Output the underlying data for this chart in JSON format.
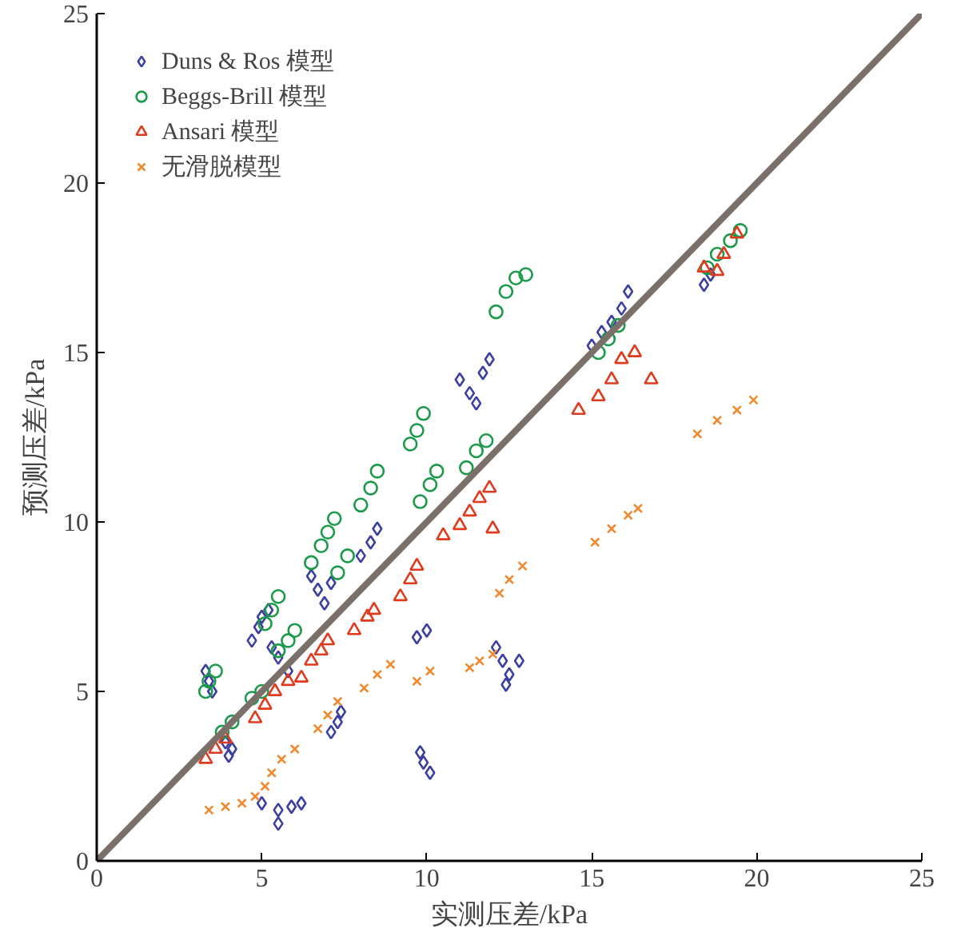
{
  "chart_data": {
    "type": "scatter",
    "xlabel": "实测压差/kPa",
    "ylabel": "预测压差/kPa",
    "xlim": [
      0,
      25
    ],
    "ylim": [
      0,
      25
    ],
    "xticks": [
      0,
      5,
      10,
      15,
      20,
      25
    ],
    "yticks": [
      0,
      5,
      10,
      15,
      20,
      25
    ],
    "grid": false,
    "legend": "top left",
    "series": [
      {
        "name": "Duns & Ros 模型",
        "color": "#3b3fa0",
        "marker": "diamond",
        "x": [
          3.3,
          3.4,
          3.5,
          3.9,
          4.1,
          4.0,
          4.7,
          4.9,
          5.0,
          5.2,
          5.3,
          5.5,
          5.8,
          6.5,
          6.7,
          6.9,
          7.1,
          8.0,
          8.3,
          8.5,
          7.1,
          7.3,
          7.4,
          5.0,
          5.5,
          5.9,
          6.2,
          5.5,
          9.8,
          9.9,
          10.1,
          9.7,
          10.0,
          11.0,
          11.3,
          11.5,
          11.7,
          11.9,
          15.0,
          15.3,
          15.6,
          15.9,
          16.1,
          12.1,
          12.3,
          12.5,
          12.8,
          12.4,
          18.4,
          18.6
        ],
        "values": [
          5.6,
          5.3,
          5.0,
          3.5,
          3.3,
          3.1,
          6.5,
          6.9,
          7.2,
          7.4,
          6.3,
          6.0,
          5.6,
          8.4,
          8.0,
          7.6,
          8.2,
          9.0,
          9.4,
          9.8,
          3.8,
          4.1,
          4.4,
          1.7,
          1.5,
          1.6,
          1.7,
          1.1,
          3.2,
          2.9,
          2.6,
          6.6,
          6.8,
          14.2,
          13.8,
          13.5,
          14.4,
          14.8,
          15.2,
          15.6,
          15.9,
          16.3,
          16.8,
          6.3,
          5.9,
          5.5,
          5.9,
          5.2,
          17.0,
          17.3
        ]
      },
      {
        "name": "Beggs-Brill 模型",
        "color": "#1a9a4a",
        "marker": "circle",
        "x": [
          3.3,
          3.4,
          3.6,
          3.8,
          4.1,
          4.7,
          5.0,
          5.1,
          5.3,
          5.5,
          5.5,
          5.8,
          6.0,
          6.5,
          6.8,
          7.0,
          7.2,
          7.3,
          7.6,
          8.0,
          8.3,
          8.5,
          9.5,
          9.7,
          9.9,
          9.8,
          10.1,
          10.3,
          11.2,
          11.5,
          11.8,
          12.1,
          12.4,
          12.7,
          13.0,
          15.2,
          15.5,
          15.8,
          18.5,
          18.8,
          19.2,
          19.5
        ],
        "values": [
          5.0,
          5.3,
          5.6,
          3.8,
          4.1,
          4.8,
          5.0,
          7.0,
          7.4,
          7.8,
          6.2,
          6.5,
          6.8,
          8.8,
          9.3,
          9.7,
          10.1,
          8.5,
          9.0,
          10.5,
          11.0,
          11.5,
          12.3,
          12.7,
          13.2,
          10.6,
          11.1,
          11.5,
          11.6,
          12.1,
          12.4,
          16.2,
          16.8,
          17.2,
          17.3,
          15.0,
          15.4,
          15.8,
          17.5,
          17.9,
          18.3,
          18.6
        ]
      },
      {
        "name": "Ansari 模型",
        "color": "#e03a1e",
        "marker": "triangle",
        "x": [
          3.3,
          3.6,
          3.9,
          4.8,
          5.1,
          5.4,
          5.8,
          6.2,
          6.5,
          6.8,
          7.0,
          7.8,
          8.2,
          8.4,
          9.2,
          9.5,
          9.7,
          10.5,
          11.0,
          11.3,
          11.6,
          11.9,
          12.0,
          14.6,
          15.2,
          15.6,
          15.9,
          16.3,
          16.8,
          18.4,
          18.8,
          19.0,
          19.4
        ],
        "values": [
          3.0,
          3.3,
          3.6,
          4.2,
          4.6,
          5.0,
          5.3,
          5.4,
          5.9,
          6.2,
          6.5,
          6.8,
          7.2,
          7.4,
          7.8,
          8.3,
          8.7,
          9.6,
          9.9,
          10.3,
          10.7,
          11.0,
          9.8,
          13.3,
          13.7,
          14.2,
          14.8,
          15.0,
          14.2,
          17.5,
          17.4,
          17.9,
          18.5
        ]
      },
      {
        "name": "无滑脱模型",
        "color": "#f08a30",
        "marker": "x",
        "x": [
          3.4,
          3.9,
          4.4,
          4.8,
          5.1,
          5.3,
          5.6,
          6.0,
          6.7,
          7.0,
          7.3,
          8.1,
          8.5,
          8.9,
          9.7,
          10.1,
          11.3,
          11.6,
          12.0,
          12.2,
          12.5,
          12.9,
          15.1,
          15.6,
          16.1,
          16.4,
          18.2,
          18.8,
          19.4,
          19.9
        ],
        "values": [
          1.5,
          1.6,
          1.7,
          1.9,
          2.2,
          2.6,
          3.0,
          3.3,
          3.9,
          4.3,
          4.7,
          5.1,
          5.5,
          5.8,
          5.3,
          5.6,
          5.7,
          5.9,
          6.1,
          7.9,
          8.3,
          8.7,
          9.4,
          9.8,
          10.2,
          10.4,
          12.6,
          13.0,
          13.3,
          13.6
        ]
      },
      {
        "type": "line",
        "color": "#7b6f6a",
        "x": [
          0,
          25
        ],
        "values": [
          0,
          25
        ]
      }
    ]
  }
}
